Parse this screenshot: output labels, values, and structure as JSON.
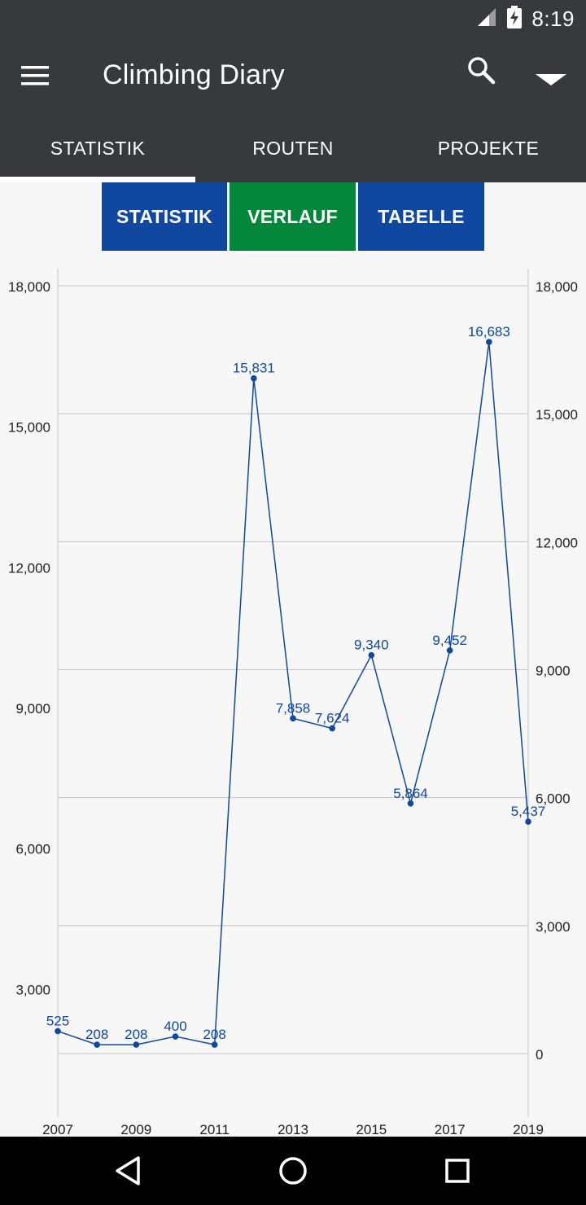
{
  "status_bar": {
    "time": "8:19",
    "icons": [
      "signal-icon",
      "battery-charging-icon"
    ]
  },
  "app_bar": {
    "title": "Climbing Diary",
    "icons": [
      "menu-icon",
      "search-icon",
      "dropdown-icon"
    ]
  },
  "tabs": [
    {
      "label": "STATISTIK",
      "selected": true
    },
    {
      "label": "ROUTEN",
      "selected": false
    },
    {
      "label": "PROJEKTE",
      "selected": false
    }
  ],
  "segments": [
    {
      "label": "STATISTIK",
      "color": "#0f47a1",
      "selected": false
    },
    {
      "label": "VERLAUF",
      "color": "#03853a",
      "selected": true
    },
    {
      "label": "TABELLE",
      "color": "#0f47a1",
      "selected": false
    }
  ],
  "nav_bar": {
    "icons": [
      "back-icon",
      "home-icon",
      "recents-icon"
    ]
  },
  "colors": {
    "app_bar": "#37393d",
    "series": "#0f47a1",
    "grid": "#c4c4c4"
  },
  "chart_data": {
    "type": "line",
    "title": "",
    "xlabel": "",
    "ylabel": "",
    "x": [
      2007,
      2008,
      2009,
      2010,
      2011,
      2012,
      2013,
      2014,
      2015,
      2016,
      2017,
      2018,
      2019
    ],
    "x_tick_labels": [
      "2007",
      "2009",
      "2011",
      "2013",
      "2015",
      "2017",
      "2019"
    ],
    "x_tick_values": [
      2007,
      2009,
      2011,
      2013,
      2015,
      2017,
      2019
    ],
    "series": [
      {
        "values": [
          525,
          208,
          208,
          400,
          208,
          15831,
          7858,
          7624,
          9340,
          5864,
          9452,
          16683,
          5437
        ],
        "data_labels": [
          "525",
          "208",
          "208",
          "400",
          "208",
          "15,831",
          "7,858",
          "7,624",
          "9,340",
          "5,864",
          "9,452",
          "16,683",
          "5,437"
        ],
        "color": "#0f47a1"
      }
    ],
    "left_axis": {
      "ylim": [
        -2715,
        18000
      ],
      "tick_values": [
        3000,
        6000,
        9000,
        12000,
        15000,
        18000
      ],
      "tick_labels": [
        "3,000",
        "6,000",
        "9,000",
        "12,000",
        "15,000",
        "18,000"
      ]
    },
    "right_axis": {
      "ylim": [
        -929,
        18000
      ],
      "tick_values": [
        0,
        3000,
        6000,
        9000,
        12000,
        15000,
        18000
      ],
      "tick_labels": [
        "0",
        "3,000",
        "6,000",
        "9,000",
        "12,000",
        "15,000",
        "18,000"
      ]
    },
    "grid": true,
    "legend": "none"
  }
}
